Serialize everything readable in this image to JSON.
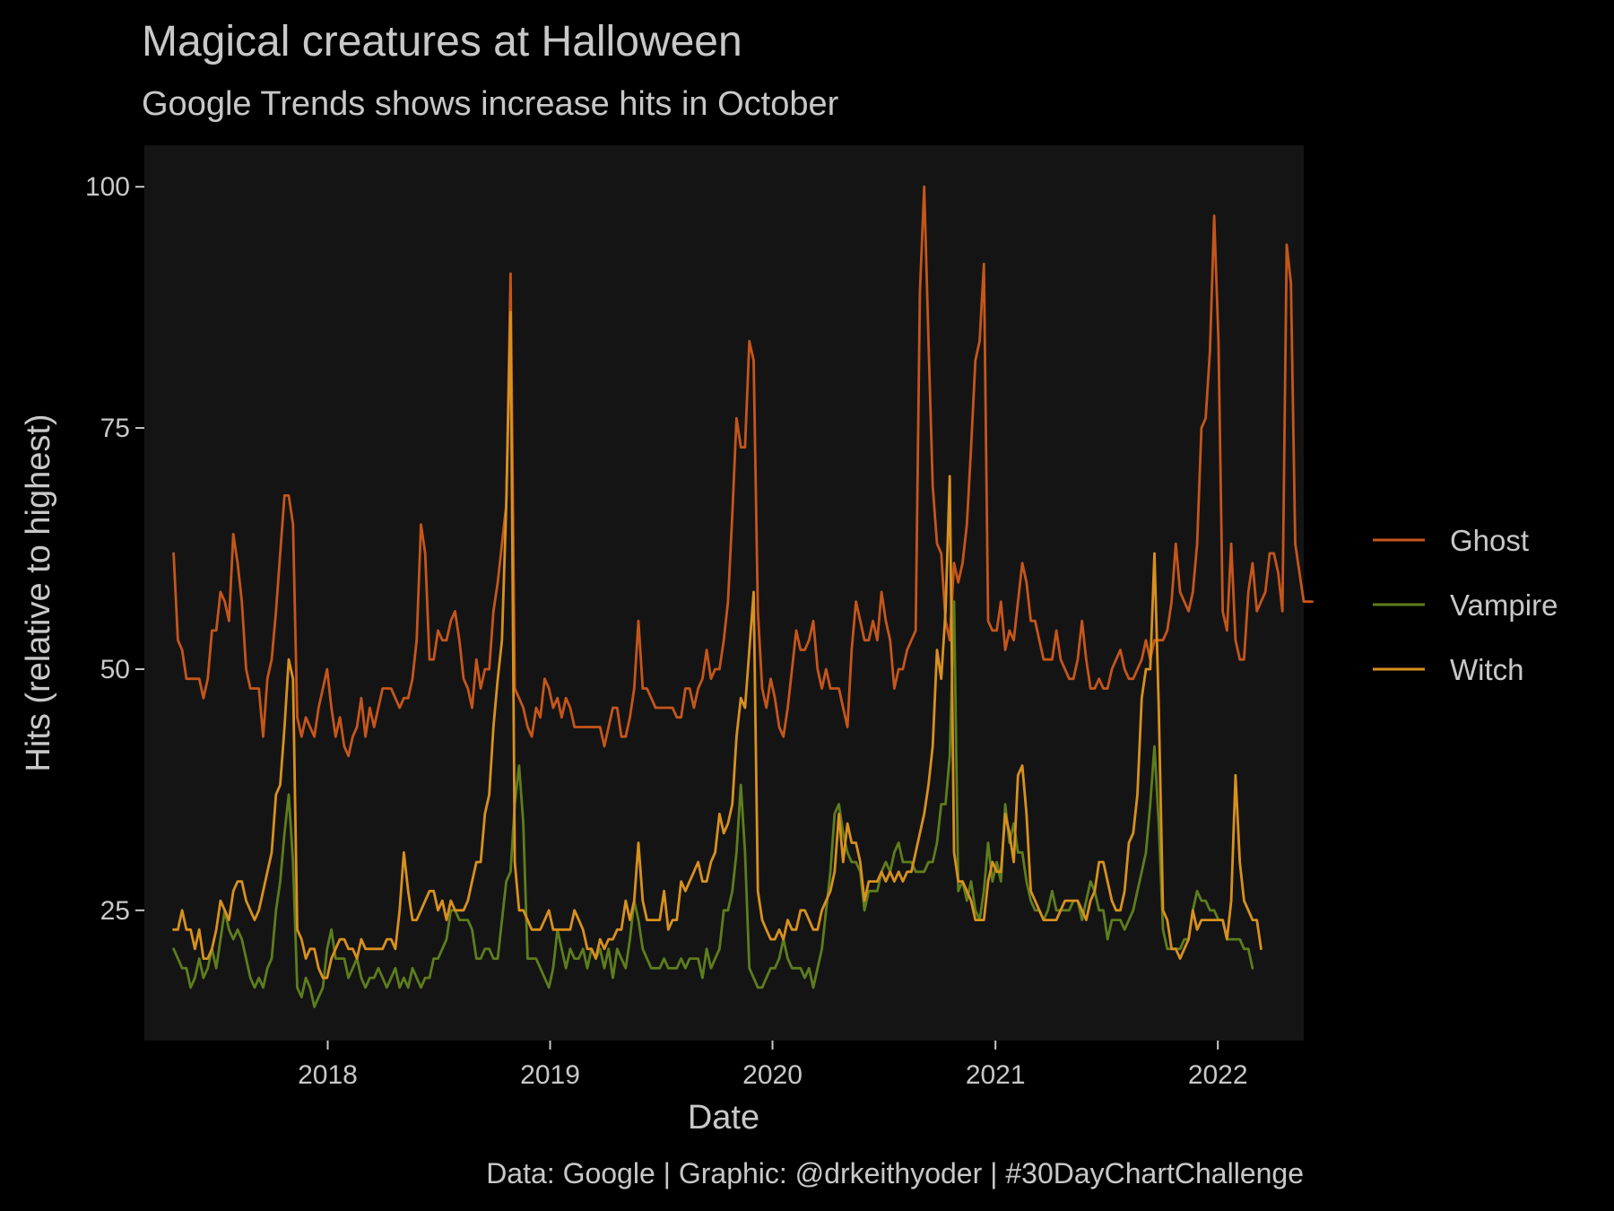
{
  "chart_data": {
    "type": "line",
    "title": "Magical creatures at Halloween",
    "subtitle": "Google Trends shows increase hits in October",
    "xlabel": "Date",
    "ylabel": "Hits (relative to highest)",
    "caption": "Data: Google | Graphic: @drkeithyoder | #30DayChartChallenge",
    "x_start": "2017-04-23",
    "x_step_weeks": 1,
    "xlim": [
      "2017-03-06",
      "2022-05-22"
    ],
    "ylim": [
      11.5,
      104.3
    ],
    "x_ticks": [
      "2018",
      "2019",
      "2020",
      "2021",
      "2022"
    ],
    "y_ticks": [
      25,
      50,
      75,
      100
    ],
    "grid": false,
    "legend_position": "right",
    "colors": {
      "background": "#000000",
      "panel": "#141414",
      "text": "#c8c8c8"
    },
    "series": [
      {
        "name": "Ghost",
        "color": "#c5561b",
        "values": [
          62,
          53,
          52,
          49,
          49,
          49,
          49,
          47,
          49,
          54,
          54,
          58,
          57,
          55,
          64,
          61,
          57,
          50,
          48,
          48,
          48,
          43,
          49,
          51,
          56,
          62,
          68,
          68,
          65,
          45,
          43,
          45,
          44,
          43,
          46,
          48,
          50,
          46,
          43,
          45,
          42,
          41,
          43,
          44,
          47,
          43,
          46,
          44,
          46,
          48,
          48,
          48,
          47,
          46,
          47,
          47,
          49,
          53,
          65,
          62,
          51,
          51,
          54,
          53,
          53,
          55,
          56,
          53,
          49,
          48,
          46,
          51,
          48,
          50,
          50,
          56,
          59,
          63,
          67,
          91,
          48,
          47,
          46,
          44,
          43,
          46,
          45,
          49,
          48,
          46,
          47,
          45,
          47,
          46,
          44,
          44,
          44,
          44,
          44,
          44,
          44,
          42,
          44,
          46,
          46,
          43,
          43,
          45,
          48,
          55,
          48,
          48,
          47,
          46,
          46,
          46,
          46,
          46,
          45,
          45,
          48,
          48,
          46,
          48,
          49,
          52,
          49,
          50,
          50,
          53,
          57,
          66,
          76,
          73,
          73,
          84,
          82,
          56,
          48,
          46,
          49,
          47,
          44,
          43,
          46,
          50,
          54,
          52,
          52,
          53,
          55,
          50,
          48,
          50,
          48,
          48,
          48,
          46,
          44,
          52,
          57,
          55,
          53,
          53,
          55,
          53,
          58,
          55,
          53,
          48,
          50,
          50,
          52,
          53,
          54,
          89,
          100,
          84,
          69,
          63,
          62,
          55,
          53,
          61,
          59,
          61,
          65,
          73,
          82,
          84,
          92,
          55,
          54,
          54,
          57,
          52,
          54,
          53,
          57,
          61,
          59,
          55,
          55,
          53,
          51,
          51,
          51,
          54,
          51,
          50,
          49,
          49,
          51,
          55,
          51,
          48,
          48,
          49,
          48,
          48,
          50,
          51,
          52,
          50,
          49,
          49,
          50,
          51,
          53,
          51,
          53,
          53,
          53,
          54,
          57,
          63,
          58,
          57,
          56,
          58,
          63,
          75,
          76,
          83,
          97,
          84,
          56,
          54,
          63,
          53,
          51,
          51,
          58,
          61,
          56,
          57,
          58,
          62,
          62,
          60,
          56,
          94,
          90,
          63,
          60,
          57,
          57,
          57
        ]
      },
      {
        "name": "Vampire",
        "color": "#5e7d1d",
        "values": [
          21,
          20,
          19,
          19,
          17,
          18,
          20,
          18,
          19,
          21,
          19,
          22,
          25,
          23,
          22,
          23,
          22,
          20,
          18,
          17,
          18,
          17,
          19,
          20,
          25,
          28,
          33,
          37,
          30,
          17,
          16,
          18,
          17,
          15,
          16,
          17,
          21,
          23,
          20,
          20,
          20,
          18,
          19,
          20,
          18,
          17,
          18,
          18,
          19,
          18,
          17,
          18,
          19,
          17,
          18,
          17,
          19,
          18,
          17,
          18,
          18,
          20,
          20,
          21,
          22,
          25,
          25,
          24,
          24,
          24,
          23,
          20,
          20,
          21,
          21,
          20,
          20,
          24,
          28,
          29,
          36,
          40,
          34,
          20,
          20,
          20,
          19,
          18,
          17,
          19,
          23,
          21,
          19,
          21,
          20,
          20,
          21,
          19,
          21,
          20,
          21,
          19,
          21,
          18,
          21,
          20,
          19,
          22,
          26,
          24,
          21,
          20,
          19,
          19,
          19,
          20,
          19,
          19,
          19,
          20,
          19,
          20,
          20,
          20,
          18,
          21,
          19,
          20,
          21,
          25,
          25,
          27,
          31,
          38,
          31,
          19,
          18,
          17,
          17,
          18,
          19,
          19,
          20,
          22,
          20,
          19,
          19,
          19,
          18,
          19,
          17,
          19,
          21,
          25,
          29,
          35,
          36,
          33,
          31,
          30,
          30,
          29,
          25,
          27,
          27,
          27,
          29,
          30,
          29,
          31,
          32,
          30,
          30,
          30,
          29,
          29,
          29,
          30,
          30,
          32,
          36,
          36,
          41,
          57,
          27,
          28,
          26,
          28,
          25,
          24,
          27,
          32,
          28,
          30,
          28,
          36,
          32,
          34,
          31,
          31,
          28,
          26,
          25,
          25,
          24,
          25,
          27,
          25,
          25,
          25,
          25,
          26,
          26,
          24,
          26,
          28,
          27,
          25,
          25,
          22,
          24,
          24,
          24,
          23,
          24,
          25,
          27,
          29,
          31,
          36,
          42,
          34,
          23,
          21,
          21,
          21,
          21,
          22,
          22,
          25,
          27,
          26,
          26,
          25,
          25,
          24,
          24,
          22,
          22,
          22,
          22,
          21,
          21,
          19
        ]
      },
      {
        "name": "Witch",
        "color": "#d8911f",
        "values": [
          23,
          23,
          25,
          23,
          23,
          21,
          23,
          20,
          20,
          21,
          23,
          26,
          25,
          24,
          27,
          28,
          28,
          26,
          25,
          24,
          25,
          27,
          29,
          31,
          37,
          38,
          44,
          51,
          49,
          23,
          22,
          20,
          21,
          21,
          19,
          18,
          18,
          20,
          21,
          22,
          22,
          21,
          21,
          20,
          22,
          21,
          21,
          21,
          21,
          21,
          22,
          22,
          21,
          25,
          31,
          27,
          24,
          24,
          25,
          26,
          27,
          27,
          25,
          26,
          24,
          26,
          25,
          25,
          25,
          26,
          28,
          30,
          30,
          35,
          37,
          44,
          49,
          53,
          67,
          87,
          30,
          25,
          25,
          24,
          23,
          23,
          23,
          24,
          25,
          23,
          23,
          23,
          23,
          23,
          25,
          24,
          23,
          21,
          21,
          20,
          22,
          21,
          22,
          22,
          23,
          23,
          26,
          24,
          26,
          32,
          26,
          24,
          24,
          24,
          24,
          27,
          23,
          24,
          24,
          28,
          27,
          28,
          29,
          30,
          28,
          28,
          30,
          31,
          35,
          33,
          34,
          36,
          43,
          47,
          46,
          52,
          58,
          27,
          24,
          23,
          22,
          22,
          23,
          22,
          24,
          23,
          23,
          25,
          25,
          24,
          23,
          23,
          25,
          26,
          27,
          29,
          35,
          30,
          34,
          32,
          32,
          30,
          26,
          28,
          28,
          28,
          29,
          28,
          29,
          28,
          29,
          28,
          29,
          29,
          31,
          33,
          35,
          38,
          42,
          52,
          49,
          56,
          70,
          31,
          28,
          28,
          27,
          26,
          24,
          24,
          24,
          28,
          30,
          29,
          29,
          35,
          33,
          30,
          39,
          40,
          35,
          27,
          26,
          25,
          24,
          24,
          24,
          24,
          25,
          26,
          26,
          26,
          26,
          25,
          24,
          26,
          27,
          30,
          30,
          28,
          26,
          25,
          25,
          27,
          32,
          33,
          37,
          47,
          50,
          50,
          62,
          46,
          25,
          24,
          21,
          21,
          20,
          21,
          22,
          25,
          23,
          24,
          24,
          24,
          24,
          24,
          24,
          22,
          26,
          39,
          30,
          26,
          25,
          24,
          24,
          21
        ]
      }
    ]
  }
}
